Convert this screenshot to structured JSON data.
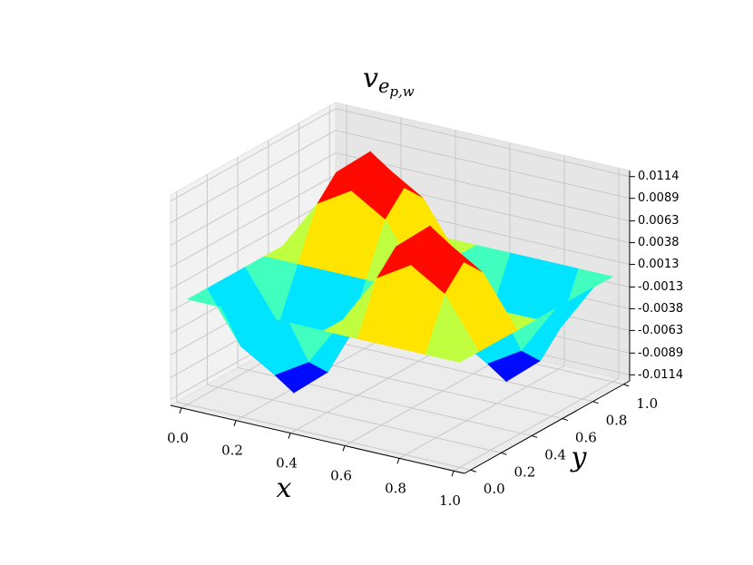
{
  "chart_data": {
    "type": "surface3d",
    "title": "v",
    "title_sub": "e",
    "title_subsub": "p,w",
    "x_label": "x",
    "y_label": "y",
    "x": [
      0,
      0.125,
      0.25,
      0.375,
      0.5,
      0.625,
      0.75,
      0.875,
      1
    ],
    "y": [
      0,
      0.125,
      0.25,
      0.375,
      0.5,
      0.625,
      0.75,
      0.875,
      1
    ],
    "z": [
      [
        0,
        0,
        0,
        0,
        0,
        0,
        0,
        0,
        0
      ],
      [
        0,
        -0.0057,
        -0.0081,
        -0.0057,
        0,
        0.0057,
        0.0081,
        0.0057,
        0
      ],
      [
        0,
        -0.0081,
        -0.0114,
        -0.0081,
        0,
        0.0081,
        0.0114,
        0.0081,
        0
      ],
      [
        0,
        -0.0057,
        -0.0081,
        -0.0057,
        0,
        0.0057,
        0.0081,
        0.0057,
        0
      ],
      [
        0,
        0,
        0,
        0,
        0,
        0,
        0,
        0,
        0
      ],
      [
        0,
        0.0057,
        0.0081,
        0.0057,
        0,
        -0.0057,
        -0.0081,
        -0.0057,
        0
      ],
      [
        0,
        0.0081,
        0.0114,
        0.0081,
        0,
        -0.0081,
        -0.0114,
        -0.0081,
        0
      ],
      [
        0,
        0.0057,
        0.0081,
        0.0057,
        0,
        -0.0057,
        -0.0081,
        -0.0057,
        0
      ],
      [
        0,
        0,
        0,
        0,
        0,
        0,
        0,
        0,
        0
      ]
    ],
    "colormap": "jet",
    "xlim": [
      -0.04,
      1.04
    ],
    "ylim": [
      -0.04,
      1.04
    ],
    "zlim": [
      -0.0121,
      0.0121
    ],
    "xticks": [
      {
        "value": 0,
        "label": "0.0"
      },
      0.2,
      0.4,
      0.6,
      0.8,
      {
        "value": 1,
        "label": "1.0"
      }
    ],
    "yticks": [
      {
        "value": 0,
        "label": "0.0"
      },
      0.2,
      0.4,
      0.6,
      0.8,
      {
        "value": 1,
        "label": "1.0"
      }
    ],
    "zticks": [
      -0.0114,
      -0.0089,
      -0.0063,
      -0.0038,
      -0.0013,
      0.0013,
      0.0038,
      0.0063,
      0.0089,
      0.0114
    ],
    "grid": true
  }
}
